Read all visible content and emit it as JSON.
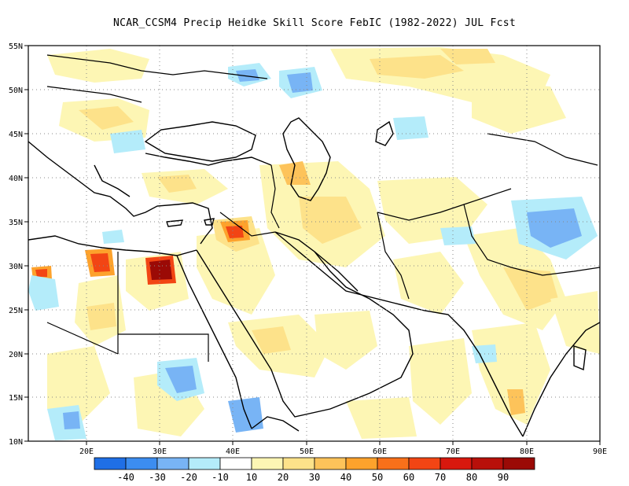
{
  "title": "NCAR_CCSM4 Precip Heidke Skill Score FebIC (1982-2022) JUL Fcst",
  "map": {
    "lat_labels": [
      "55N",
      "50N",
      "45N",
      "40N",
      "35N",
      "30N",
      "25N",
      "20N",
      "15N",
      "10N"
    ],
    "lon_labels": [
      "20E",
      "30E",
      "40E",
      "50E",
      "60E",
      "70E",
      "80E",
      "90E"
    ],
    "lat_range": [
      10,
      55
    ],
    "lon_range": [
      12,
      90
    ],
    "grid": "dotted"
  },
  "colorbar": {
    "colors": [
      "#1f6fe6",
      "#3c8df0",
      "#78b4f5",
      "#b4ecfa",
      "#ffffff",
      "#fdf6b4",
      "#fde28a",
      "#fdc35a",
      "#fda22c",
      "#f8701a",
      "#f24514",
      "#d8180e",
      "#b8100a",
      "#9b0a06"
    ],
    "labels": [
      "-40",
      "-30",
      "-20",
      "-10",
      "10",
      "20",
      "30",
      "40",
      "50",
      "60",
      "70",
      "80",
      "90"
    ]
  }
}
